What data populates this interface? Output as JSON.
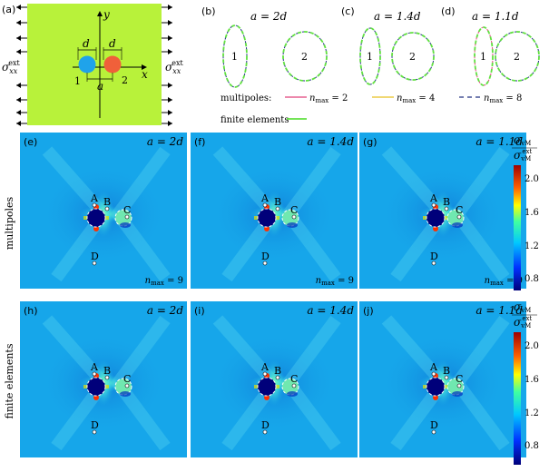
{
  "schematic": {
    "label": "(a)",
    "sigma_left": "σ",
    "sigma_right": "σ",
    "sigma_sub": "xx",
    "sigma_sup": "ext",
    "axis_x": "x",
    "axis_y": "y",
    "dim_d1": "d",
    "dim_d2": "d",
    "dim_a": "a",
    "incl_1": "1",
    "incl_2": "2",
    "color_plate": "#b8f23a",
    "color_incl_1": "#1fa3ea",
    "color_incl_2": "#f0603a"
  },
  "shapes": [
    {
      "label": "(b)",
      "title": "a = 2d",
      "n1": "1",
      "n2": "2"
    },
    {
      "label": "(c)",
      "title": "a = 1.4d",
      "n1": "1",
      "n2": "2"
    },
    {
      "label": "(d)",
      "title": "a = 1.1d",
      "n1": "1",
      "n2": "2"
    }
  ],
  "legend": {
    "multipoles": "multipoles:",
    "n2": "n",
    "n2_sub": "max",
    "n2_val": " = 2",
    "n4": "n",
    "n4_sub": "max",
    "n4_val": " = 4",
    "n8": "n",
    "n8_sub": "max",
    "n8_val": " = 8",
    "fe": "finite elements",
    "color_n2": "#e0407a",
    "color_n4": "#e8c020",
    "color_n8": "#203080",
    "color_fe": "#60e040"
  },
  "row_labels": {
    "top": "multipoles",
    "bottom": "finite elements"
  },
  "maps": [
    {
      "label": "(e)",
      "title": "a = 2d",
      "nmax": "n",
      "nmax_sub": "max",
      "nmax_val": " = 9"
    },
    {
      "label": "(f)",
      "title": "a = 1.4d",
      "nmax": "n",
      "nmax_sub": "max",
      "nmax_val": " = 9"
    },
    {
      "label": "(g)",
      "title": "a = 1.1d",
      "nmax": "n",
      "nmax_sub": "max",
      "nmax_val": " = 9"
    },
    {
      "label": "(h)",
      "title": "a = 2d"
    },
    {
      "label": "(i)",
      "title": "a = 1.4d"
    },
    {
      "label": "(j)",
      "title": "a = 1.1d"
    }
  ],
  "points": {
    "A": "A",
    "B": "B",
    "C": "C",
    "D": "D"
  },
  "colorbar": {
    "num": "σ",
    "num_sub": "vM",
    "den": "σ",
    "den_sub": "vM",
    "den_sup": "ext",
    "ticks": [
      "2.0",
      "1.6",
      "1.2",
      "0.8"
    ]
  }
}
